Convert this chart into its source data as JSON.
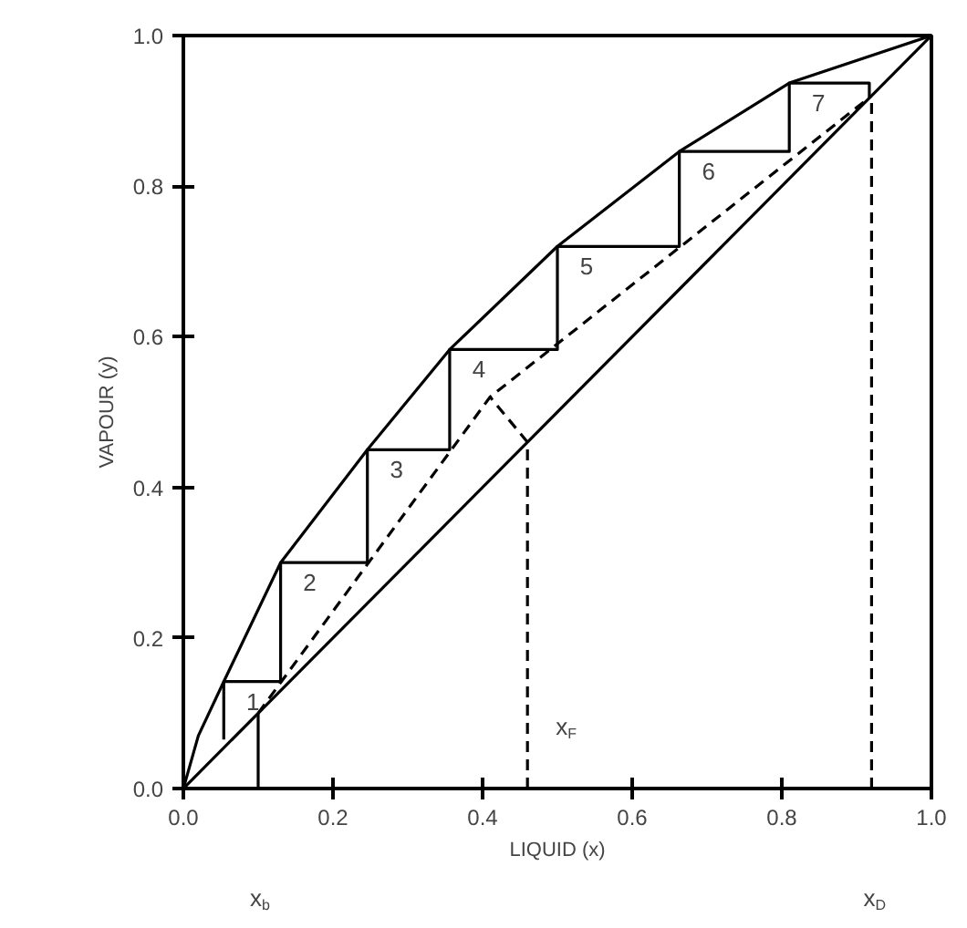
{
  "chart_data": {
    "type": "line",
    "xlabel": "LIQUID (x)",
    "ylabel": "VAPOUR (y)",
    "xlim": [
      0,
      1
    ],
    "ylim": [
      0,
      1
    ],
    "grid": false,
    "marker": "none",
    "xticks": [
      {
        "value": 0,
        "label": "0.0"
      },
      {
        "value": 0.2,
        "label": "0.2"
      },
      {
        "value": 0.4,
        "label": "0.4"
      },
      {
        "value": 0.6,
        "label": "0.6"
      },
      {
        "value": 0.8,
        "label": "0.8"
      },
      {
        "value": 1,
        "label": "1.0"
      }
    ],
    "yticks": [
      {
        "value": 0,
        "label": "0.0"
      },
      {
        "value": 0.2,
        "label": "0.2"
      },
      {
        "value": 0.4,
        "label": "0.4"
      },
      {
        "value": 0.6,
        "label": "0.6"
      },
      {
        "value": 0.8,
        "label": "0.8"
      },
      {
        "value": 1,
        "label": "1.0"
      }
    ],
    "series": [
      {
        "color": "#000000",
        "line_style": "solid",
        "x": [
          0,
          0.02,
          0.054,
          0.13,
          0.246,
          0.356,
          0.5,
          0.663,
          0.81,
          1
        ],
        "values": [
          0,
          0.07,
          0.142,
          0.3,
          0.45,
          0.583,
          0.72,
          0.846,
          0.937,
          1
        ]
      },
      {
        "color": "#000000",
        "line_style": "solid",
        "x": [
          0,
          1
        ],
        "values": [
          0,
          1
        ]
      },
      {
        "color": "#000000",
        "line_style": "solid",
        "x": [
          0.917,
          0.917,
          0.81,
          0.81,
          0.663,
          0.663,
          0.5,
          0.5,
          0.356,
          0.356,
          0.246,
          0.246,
          0.13,
          0.13,
          0.054,
          0.054
        ],
        "values": [
          0.917,
          0.937,
          0.937,
          0.846,
          0.846,
          0.72,
          0.72,
          0.583,
          0.583,
          0.45,
          0.45,
          0.3,
          0.3,
          0.142,
          0.142,
          0.065
        ]
      },
      {
        "color": "#000000",
        "line_style": "dashed",
        "x": [
          0.1,
          0.41,
          0.92
        ],
        "values": [
          0.1,
          0.52,
          0.92
        ]
      },
      {
        "color": "#000000",
        "line_style": "dashed",
        "x": [
          0.46,
          0.41
        ],
        "values": [
          0.46,
          0.52
        ]
      },
      {
        "color": "#000000",
        "line_style": "solid",
        "x": [
          0.1,
          0.1
        ],
        "values": [
          0,
          0.1
        ]
      },
      {
        "color": "#000000",
        "line_style": "dashed",
        "x": [
          0.46,
          0.46
        ],
        "values": [
          0,
          0.46
        ]
      },
      {
        "color": "#000000",
        "line_style": "dashed",
        "x": [
          0.92,
          0.92
        ],
        "values": [
          0,
          0.92
        ]
      }
    ],
    "annotations": [
      "1",
      "2",
      "3",
      "4",
      "5",
      "6",
      "7",
      {
        "text": "x$_{F}$",
        "x": 0.46,
        "y": 0
      },
      "x$_{b}$",
      "x$_{D}$"
    ]
  }
}
